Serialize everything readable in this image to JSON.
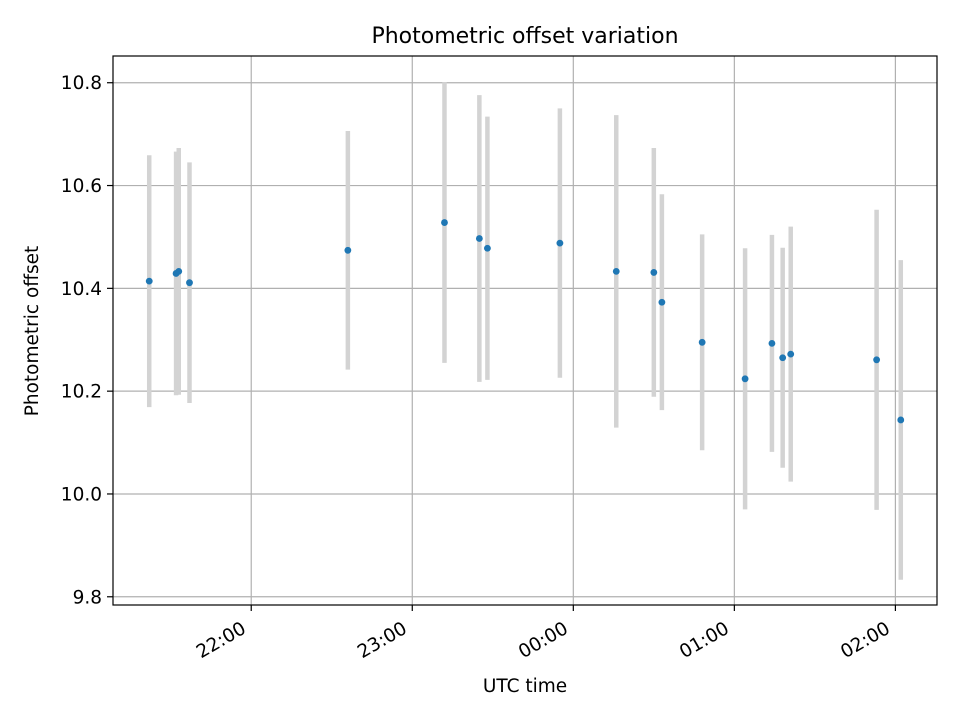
{
  "chart_data": {
    "type": "scatter",
    "title": "Photometric offset variation",
    "xlabel": "UTC time",
    "ylabel": "Photometric offset",
    "x_axis_type": "time",
    "x_reference_date": "",
    "xlim": [
      "21:08:30",
      "02:15:30"
    ],
    "ylim": [
      9.784,
      10.852
    ],
    "x_ticks": [
      "22:00",
      "23:00",
      "00:00",
      "01:00",
      "02:00"
    ],
    "x_tick_values": [
      "22:00",
      "23:00",
      "00:00",
      "01:00",
      "02:00"
    ],
    "y_ticks": [
      "9.8",
      "10.0",
      "10.2",
      "10.4",
      "10.6",
      "10.8"
    ],
    "y_tick_values": [
      9.8,
      10.0,
      10.2,
      10.4,
      10.6,
      10.8
    ],
    "grid": true,
    "legend": "none",
    "colors": {
      "marker": "#1f77b4",
      "errorbar": "#d3d3d3",
      "grid": "#b0b0b0"
    },
    "series": [
      {
        "points": [
          {
            "x": "21:22",
            "y": 10.414,
            "yerr": 0.245
          },
          {
            "x": "21:32",
            "y": 10.429,
            "yerr": 0.237
          },
          {
            "x": "21:33",
            "y": 10.433,
            "yerr": 0.24
          },
          {
            "x": "21:37",
            "y": 10.411,
            "yerr": 0.234
          },
          {
            "x": "22:36",
            "y": 10.474,
            "yerr": 0.232
          },
          {
            "x": "23:12",
            "y": 10.528,
            "yerr": 0.273
          },
          {
            "x": "23:25",
            "y": 10.497,
            "yerr": 0.279
          },
          {
            "x": "23:28",
            "y": 10.478,
            "yerr": 0.256
          },
          {
            "x": "23:55",
            "y": 10.488,
            "yerr": 0.262
          },
          {
            "x": "00:16",
            "y": 10.433,
            "yerr": 0.304
          },
          {
            "x": "00:30",
            "y": 10.431,
            "yerr": 0.242
          },
          {
            "x": "00:33",
            "y": 10.373,
            "yerr": 0.21
          },
          {
            "x": "00:48",
            "y": 10.295,
            "yerr": 0.21
          },
          {
            "x": "01:04",
            "y": 10.224,
            "yerr": 0.254
          },
          {
            "x": "01:14",
            "y": 10.293,
            "yerr": 0.211
          },
          {
            "x": "01:18",
            "y": 10.265,
            "yerr": 0.214
          },
          {
            "x": "01:21",
            "y": 10.272,
            "yerr": 0.248
          },
          {
            "x": "01:53",
            "y": 10.261,
            "yerr": 0.292
          },
          {
            "x": "02:02",
            "y": 10.144,
            "yerr": 0.311
          }
        ]
      }
    ]
  }
}
